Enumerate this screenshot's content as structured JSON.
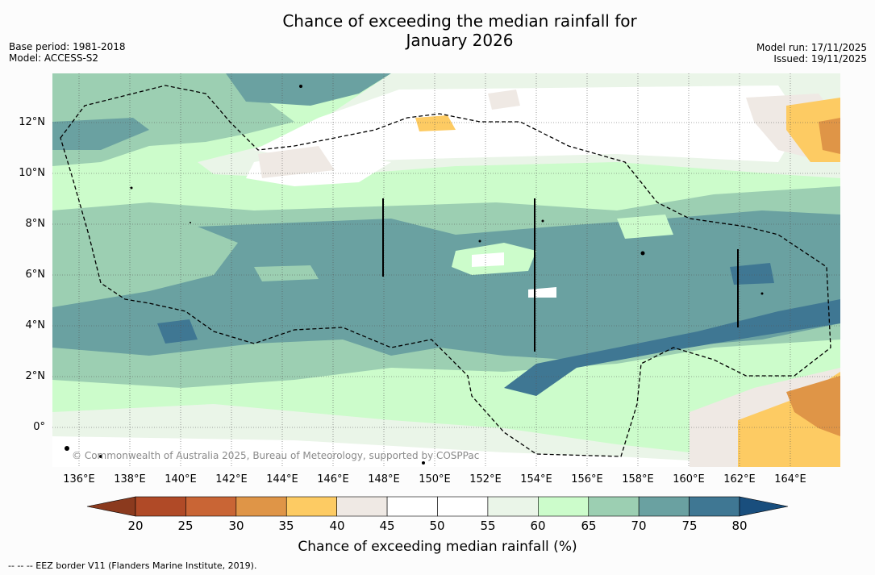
{
  "title_line1": "Chance of exceeding the median rainfall for",
  "title_line2": "January 2026",
  "meta_left": {
    "base_period": "Base period: 1981-2018",
    "model": "Model: ACCESS-S2"
  },
  "meta_right": {
    "model_run": "Model run: 17/11/2025",
    "issued": "Issued: 19/11/2025"
  },
  "lat_labels": [
    "12°N",
    "10°N",
    "8°N",
    "6°N",
    "4°N",
    "2°N",
    "0°"
  ],
  "lon_labels": [
    "136°E",
    "138°E",
    "140°E",
    "142°E",
    "144°E",
    "146°E",
    "148°E",
    "150°E",
    "152°E",
    "154°E",
    "156°E",
    "158°E",
    "160°E",
    "162°E",
    "164°E"
  ],
  "copyright": "© Commonwealth of Australia 2025, Bureau of Meteorology, supported by COSPPac",
  "colorbar": {
    "ticks": [
      "20",
      "25",
      "30",
      "35",
      "40",
      "45",
      "50",
      "55",
      "60",
      "65",
      "70",
      "75",
      "80"
    ],
    "colors": [
      "#8b3a1e",
      "#b04a27",
      "#c96535",
      "#df9547",
      "#fdcb63",
      "#efe9e4",
      "#ffffff",
      "#ffffff",
      "#eaf5e8",
      "#ccfccb",
      "#9ccfb2",
      "#6aa1a1",
      "#3f7793",
      "#194e7d"
    ],
    "title": "Chance of exceeding median rainfall (%)"
  },
  "footer": "--  --  -- EEZ border V11 (Flanders Marine Institute, 2019)."
}
